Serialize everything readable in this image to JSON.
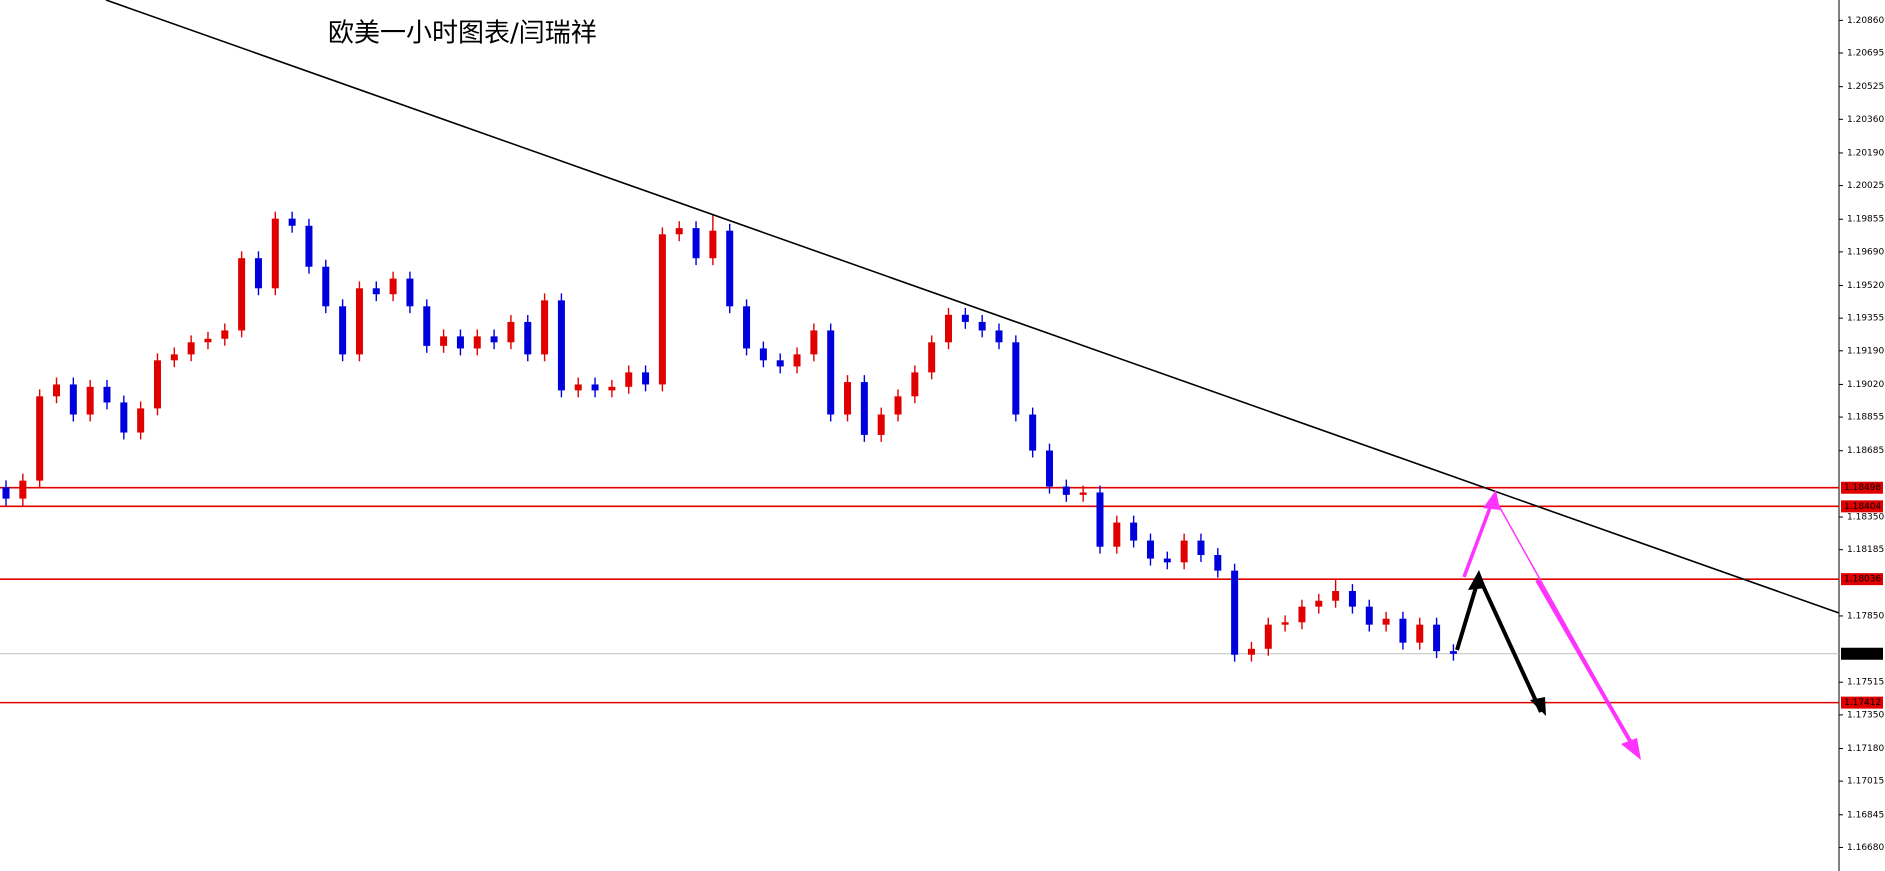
{
  "chart_data": {
    "type": "candlestick",
    "title": "欧美一小时图表/闫瑞祥",
    "categories": [
      null,
      null,
      null,
      null,
      null,
      null,
      null,
      null,
      null,
      null,
      null,
      null,
      null,
      null,
      null,
      null,
      null,
      null,
      null,
      null,
      null,
      null,
      null,
      null,
      null,
      null,
      null,
      null,
      null,
      null,
      null,
      null,
      null,
      null,
      null,
      null,
      null,
      null,
      null,
      null,
      null,
      null,
      null,
      null,
      null,
      null,
      null,
      null,
      null,
      null,
      null,
      null,
      null,
      null,
      null,
      null,
      null,
      null,
      null,
      null,
      null,
      null,
      null,
      null,
      null,
      null,
      null,
      null,
      null,
      null,
      null,
      null,
      null,
      null,
      null,
      null,
      null,
      null,
      null,
      null,
      null,
      null,
      null,
      null,
      null,
      null,
      null
    ],
    "open": [
      1.185,
      1.18443,
      1.18534,
      1.1896,
      1.1902,
      1.18868,
      1.19008,
      1.18929,
      1.18777,
      1.18899,
      1.19142,
      1.19172,
      1.19233,
      1.19251,
      1.19293,
      1.19658,
      1.19506,
      1.19858,
      1.19822,
      1.19615,
      1.19415,
      1.19172,
      1.19506,
      1.19476,
      1.19555,
      1.19415,
      1.19215,
      1.19263,
      1.19202,
      1.19263,
      1.19233,
      1.19336,
      1.19172,
      1.19445,
      1.1899,
      1.1902,
      1.1899,
      1.19008,
      1.19081,
      1.1902,
      1.19779,
      1.1981,
      1.19658,
      1.19797,
      1.19415,
      1.19202,
      1.19142,
      1.19111,
      1.19172,
      1.19293,
      1.18868,
      1.19032,
      1.18765,
      1.18868,
      1.1896,
      1.19081,
      1.19233,
      1.19372,
      1.19336,
      1.19293,
      1.19233,
      1.18868,
      1.18686,
      1.18504,
      1.18462,
      1.18474,
      1.182,
      1.18322,
      1.18231,
      1.1814,
      1.18121,
      1.18231,
      1.18158,
      1.18079,
      1.17654,
      1.17684,
      1.17806,
      1.17818,
      1.17897,
      1.17927,
      1.17976,
      1.17897,
      1.17806,
      1.17836,
      1.17715,
      1.17806,
      1.17672
    ],
    "high": [
      1.18535,
      1.18569,
      1.18995,
      1.19055,
      1.19055,
      1.19043,
      1.19043,
      1.18964,
      1.18934,
      1.19177,
      1.19207,
      1.19268,
      1.19286,
      1.19328,
      1.19693,
      1.19693,
      1.19893,
      1.19893,
      1.19857,
      1.1965,
      1.1945,
      1.19541,
      1.19541,
      1.1959,
      1.1959,
      1.1945,
      1.19298,
      1.19298,
      1.19298,
      1.19298,
      1.19371,
      1.19371,
      1.1948,
      1.1948,
      1.19055,
      1.19055,
      1.19043,
      1.19116,
      1.19116,
      1.19814,
      1.19845,
      1.19845,
      1.1988,
      1.19832,
      1.1945,
      1.19237,
      1.19177,
      1.19207,
      1.19328,
      1.19328,
      1.19067,
      1.19067,
      1.18903,
      1.18995,
      1.19116,
      1.19268,
      1.19407,
      1.19407,
      1.19371,
      1.19328,
      1.19268,
      1.18903,
      1.18721,
      1.18539,
      1.18509,
      1.18509,
      1.18357,
      1.18357,
      1.18266,
      1.18175,
      1.18266,
      1.18266,
      1.18193,
      1.18114,
      1.17719,
      1.17841,
      1.17853,
      1.17932,
      1.17962,
      1.18036,
      1.18011,
      1.17932,
      1.17871,
      1.17871,
      1.17841,
      1.17841,
      1.17707
    ],
    "low": [
      1.18408,
      1.18408,
      1.18499,
      1.18925,
      1.18833,
      1.18833,
      1.18894,
      1.18742,
      1.18742,
      1.18864,
      1.19107,
      1.19137,
      1.19198,
      1.19216,
      1.19258,
      1.19471,
      1.19471,
      1.19787,
      1.1958,
      1.1938,
      1.19137,
      1.19137,
      1.19441,
      1.19441,
      1.1938,
      1.1918,
      1.1918,
      1.19167,
      1.19167,
      1.19198,
      1.19198,
      1.19137,
      1.19137,
      1.18955,
      1.18955,
      1.18955,
      1.18955,
      1.18973,
      1.18985,
      1.18985,
      1.19744,
      1.19623,
      1.19623,
      1.1938,
      1.19167,
      1.19107,
      1.19076,
      1.19076,
      1.19137,
      1.18833,
      1.18833,
      1.1873,
      1.1873,
      1.18833,
      1.18925,
      1.19046,
      1.19198,
      1.19301,
      1.19258,
      1.19198,
      1.18833,
      1.18651,
      1.18469,
      1.18427,
      1.18427,
      1.18165,
      1.18165,
      1.18196,
      1.18105,
      1.18086,
      1.18086,
      1.18123,
      1.18044,
      1.17619,
      1.17619,
      1.17649,
      1.17771,
      1.17783,
      1.17862,
      1.17892,
      1.17862,
      1.17771,
      1.17771,
      1.1768,
      1.1768,
      1.17637,
      1.17624
    ],
    "close": [
      1.18443,
      1.18534,
      1.1896,
      1.1902,
      1.18868,
      1.19008,
      1.18929,
      1.18777,
      1.18899,
      1.19142,
      1.19172,
      1.19233,
      1.19251,
      1.19293,
      1.19658,
      1.19506,
      1.19858,
      1.19822,
      1.19615,
      1.19415,
      1.19172,
      1.19506,
      1.19476,
      1.19555,
      1.19415,
      1.19215,
      1.19263,
      1.19202,
      1.19263,
      1.19233,
      1.19336,
      1.19172,
      1.19445,
      1.1899,
      1.1902,
      1.1899,
      1.19008,
      1.19081,
      1.1902,
      1.19779,
      1.1981,
      1.19658,
      1.19797,
      1.19415,
      1.19202,
      1.19142,
      1.19111,
      1.19172,
      1.19293,
      1.18868,
      1.19032,
      1.18765,
      1.18868,
      1.1896,
      1.19081,
      1.19233,
      1.19372,
      1.19336,
      1.19293,
      1.19233,
      1.18868,
      1.18686,
      1.18504,
      1.18462,
      1.18474,
      1.182,
      1.18322,
      1.18231,
      1.1814,
      1.18121,
      1.18231,
      1.18158,
      1.18079,
      1.17654,
      1.17684,
      1.17806,
      1.17818,
      1.17897,
      1.17927,
      1.17976,
      1.17897,
      1.17806,
      1.17836,
      1.17715,
      1.17806,
      1.17672,
      1.17659
    ],
    "up_color": "#e00000",
    "down_color": "#0000dd",
    "ylim": [
      1.16561,
      1.20963
    ],
    "yticks": [
      {
        "value": 1.2086,
        "label": "1.20860"
      },
      1.20695,
      1.20525,
      {
        "value": 1.2036,
        "label": "1.20360"
      },
      {
        "value": 1.2019,
        "label": "1.20190"
      },
      1.20025,
      1.19855,
      {
        "value": 1.1969,
        "label": "1.19690"
      },
      {
        "value": 1.1952,
        "label": "1.19520"
      },
      1.19355,
      {
        "value": 1.1919,
        "label": "1.19190"
      },
      {
        "value": 1.1902,
        "label": "1.19020"
      },
      1.18855,
      1.18685,
      {
        "value": 1.1835,
        "label": "1.18350"
      },
      1.18185,
      {
        "value": 1.1785,
        "label": "1.17850"
      },
      1.17515,
      {
        "value": 1.1735,
        "label": "1.17350"
      },
      {
        "value": 1.1718,
        "label": "1.17180"
      },
      1.17015,
      1.16845,
      {
        "value": 1.1668,
        "label": "1.16680"
      }
    ],
    "levels": [
      1.18498,
      1.18404,
      1.18036,
      1.17412
    ],
    "level_color": "#e00000",
    "last_price": 1.17659
  }
}
